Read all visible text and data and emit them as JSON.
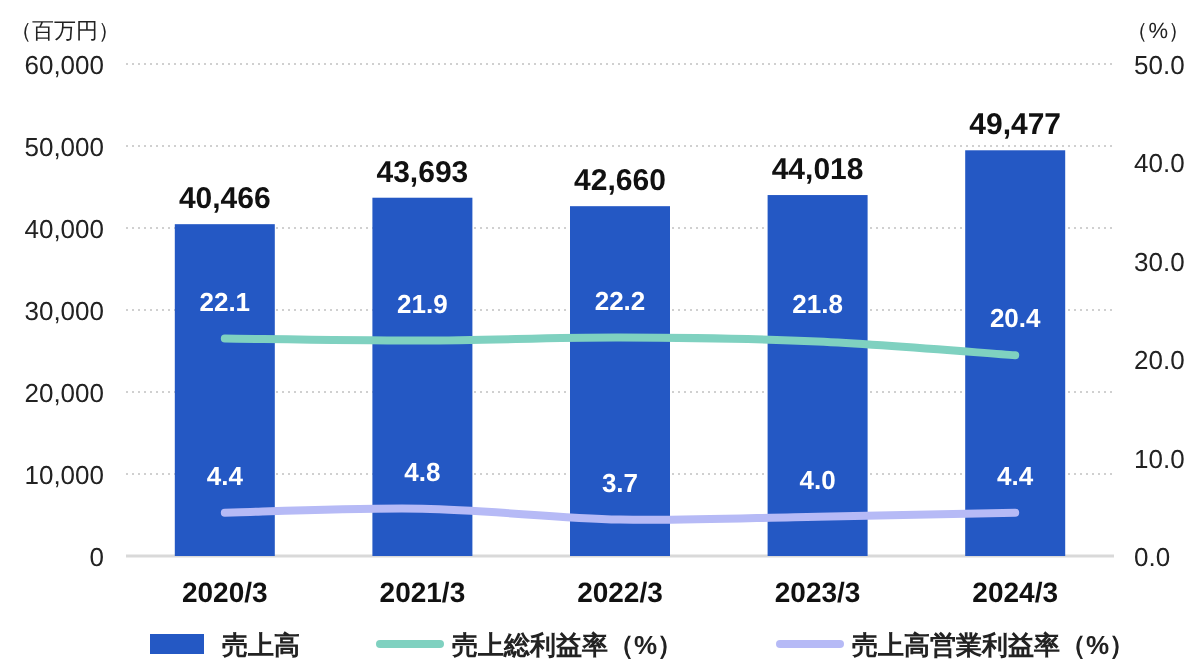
{
  "chart_data": {
    "type": "bar",
    "ylabel": "（百万円）",
    "y2label": "（%）",
    "categories": [
      "2020/3",
      "2021/3",
      "2022/3",
      "2023/3",
      "2024/3"
    ],
    "series": [
      {
        "name": "売上高",
        "color": "#2458c4",
        "values": [
          40466,
          43693,
          42660,
          44018,
          49477
        ],
        "value_labels": [
          "40,466",
          "43,693",
          "42,660",
          "44,018",
          "49,477"
        ]
      },
      {
        "name": "売上総利益率（%）",
        "type": "line",
        "axis": "y2",
        "color": "#7fd1c0",
        "values": [
          22.1,
          21.9,
          22.2,
          21.8,
          20.4
        ],
        "value_labels": [
          "22.1",
          "21.9",
          "22.2",
          "21.8",
          "20.4"
        ]
      },
      {
        "name": "売上高営業利益率（%）",
        "type": "line",
        "axis": "y2",
        "color": "#b6baf6",
        "values": [
          4.4,
          4.8,
          3.7,
          4.0,
          4.4
        ],
        "value_labels": [
          "4.4",
          "4.8",
          "3.7",
          "4.0",
          "4.4"
        ]
      }
    ],
    "ylim": [
      0,
      60000
    ],
    "yticks": [
      {
        "value": 0,
        "label": "0"
      },
      {
        "value": 10000,
        "label": "10,000"
      },
      {
        "value": 20000,
        "label": "20,000"
      },
      {
        "value": 30000,
        "label": "30,000"
      },
      {
        "value": 40000,
        "label": "40,000"
      },
      {
        "value": 50000,
        "label": "50,000"
      },
      {
        "value": 60000,
        "label": "60,000"
      }
    ],
    "y2lim": [
      0,
      50
    ],
    "y2ticks": [
      {
        "value": 0,
        "label": "0.0"
      },
      {
        "value": 10,
        "label": "10.0"
      },
      {
        "value": 20,
        "label": "20.0"
      },
      {
        "value": 30,
        "label": "30.0"
      },
      {
        "value": 40,
        "label": "40.0"
      },
      {
        "value": 50,
        "label": "50.0"
      }
    ],
    "grid": "y",
    "legend": "bottom"
  }
}
